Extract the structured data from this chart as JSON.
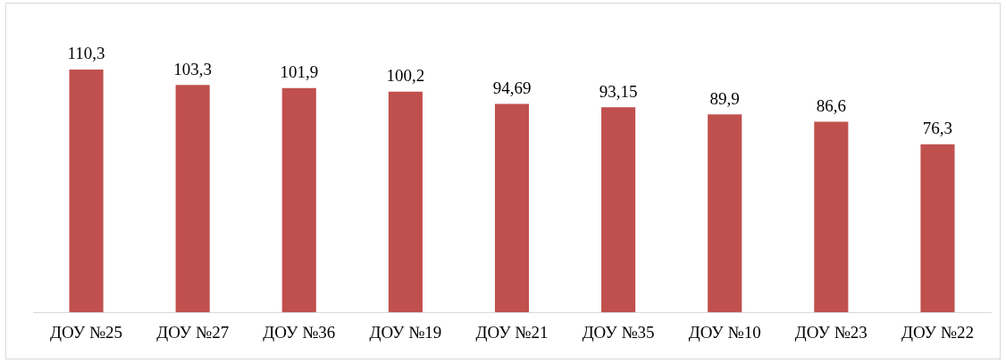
{
  "chart_data": {
    "type": "bar",
    "categories": [
      "ДОУ №25",
      "ДОУ №27",
      "ДОУ №36",
      "ДОУ №19",
      "ДОУ №21",
      "ДОУ №35",
      "ДОУ №10",
      "ДОУ №23",
      "ДОУ №22"
    ],
    "values": [
      110.3,
      103.3,
      101.9,
      100.2,
      94.69,
      93.15,
      89.9,
      86.6,
      76.3
    ],
    "value_labels": [
      "110,3",
      "103,3",
      "101,9",
      "100,2",
      "94,69",
      "93,15",
      "89,9",
      "86,6",
      "76,3"
    ],
    "color": "#c0504d",
    "grid": false,
    "legend": false
  }
}
